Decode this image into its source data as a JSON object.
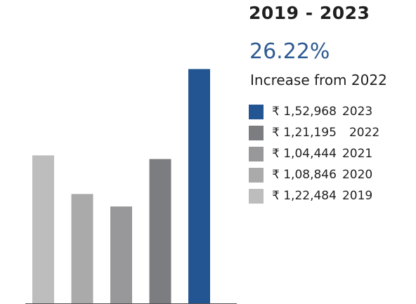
{
  "chart_data": {
    "type": "bar",
    "categories": [
      "2019",
      "2020",
      "2021",
      "2022",
      "2023"
    ],
    "values": [
      122484,
      108846,
      104444,
      121195,
      152968
    ],
    "colors": [
      "#bdbdbd",
      "#aaaaab",
      "#98989a",
      "#7c7d80",
      "#235592"
    ],
    "title": "2019 - 2023",
    "xlabel": "",
    "ylabel": "",
    "ylim": [
      70000,
      160000
    ],
    "grid": false,
    "legend_position": "right"
  },
  "header": {
    "range_title": "2019 - 2023",
    "change_percent": "26.22%",
    "change_label": "Increase from 2022"
  },
  "legend": [
    {
      "amount": "₹ 1,52,968",
      "year": "2023",
      "color": "#235592"
    },
    {
      "amount": "₹ 1,21,195",
      "year": "2022",
      "color": "#7c7d80"
    },
    {
      "amount": "₹ 1,04,444",
      "year": "2021",
      "color": "#98989a"
    },
    {
      "amount": "₹ 1,08,846",
      "year": "2020",
      "color": "#aaaaab"
    },
    {
      "amount": "₹ 1,22,484",
      "year": "2019",
      "color": "#bdbdbd"
    }
  ]
}
